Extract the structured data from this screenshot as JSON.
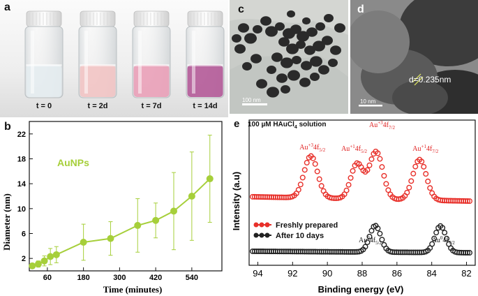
{
  "panel_a": {
    "label": "a",
    "vials": [
      {
        "caption": "t = 0",
        "liquid": "#e4ecef"
      },
      {
        "caption": "t = 2d",
        "liquid": "#f2c4c4"
      },
      {
        "caption": "t = 7d",
        "liquid": "#eaa0b8"
      },
      {
        "caption": "t = 14d",
        "liquid": "#b45a98"
      }
    ]
  },
  "panel_c": {
    "label": "c",
    "scale_bar": "100 nm"
  },
  "panel_d": {
    "label": "d",
    "scale_bar": "10 nm",
    "annotation": "d=0.235nm"
  },
  "panel_b": {
    "label": "b",
    "legend": "AuNPs",
    "color": "#a6cf3a"
  },
  "panel_e": {
    "label": "e",
    "title": "100 µM HAuCl",
    "title_sub": "4",
    "title_suffix": " solution"
  },
  "chart_data": [
    {
      "type": "line",
      "panel": "b",
      "xlabel": "Time (minutes)",
      "ylabel": "Diameter (nm)",
      "xlim": [
        0,
        640
      ],
      "ylim": [
        0,
        24
      ],
      "xticks": [
        60,
        180,
        300,
        420,
        540
      ],
      "yticks": [
        2,
        6,
        10,
        14,
        18,
        22
      ],
      "series": [
        {
          "name": "AuNPs",
          "x": [
            10,
            30,
            50,
            70,
            90,
            180,
            270,
            360,
            420,
            480,
            540,
            600
          ],
          "y": [
            0.8,
            1.1,
            1.6,
            2.3,
            2.6,
            4.6,
            5.2,
            7.3,
            8.1,
            9.6,
            12.0,
            14.8
          ],
          "err": [
            0.3,
            0.5,
            0.8,
            1.3,
            1.3,
            2.9,
            2.7,
            4.3,
            2.8,
            6.2,
            7.1,
            7.0
          ]
        }
      ]
    },
    {
      "type": "scatter",
      "panel": "e",
      "xlabel": "Binding energy (eV)",
      "ylabel": "Intensity (a.u)",
      "xlim": [
        94.5,
        81.5
      ],
      "xticks": [
        94,
        92,
        90,
        88,
        86,
        84,
        82
      ],
      "series": [
        {
          "name": "Freshly prepared",
          "color": "#e8302a"
        },
        {
          "name": "After 10 days",
          "color": "#222222"
        }
      ],
      "annotations": [
        {
          "text": "Au",
          "sup": "+3",
          "suffix": "4f",
          "sub": "5/2",
          "color": "#e02020"
        },
        {
          "text": "Au",
          "sup": "+1",
          "suffix": "4f",
          "sub": "5/2",
          "color": "#e02020"
        },
        {
          "text": "Au",
          "sup": "+3",
          "suffix": "4f",
          "sub": "7/2",
          "color": "#e02020"
        },
        {
          "text": "Au",
          "sup": "+1",
          "suffix": "4f",
          "sub": "7/2",
          "color": "#e02020"
        },
        {
          "text": "Au",
          "sup": "0",
          "suffix": "4f",
          "sub": "5/2",
          "color": "#111111"
        },
        {
          "text": "Au",
          "sup": "0",
          "suffix": "4f",
          "sub": "7/2",
          "color": "#111111"
        }
      ]
    }
  ]
}
